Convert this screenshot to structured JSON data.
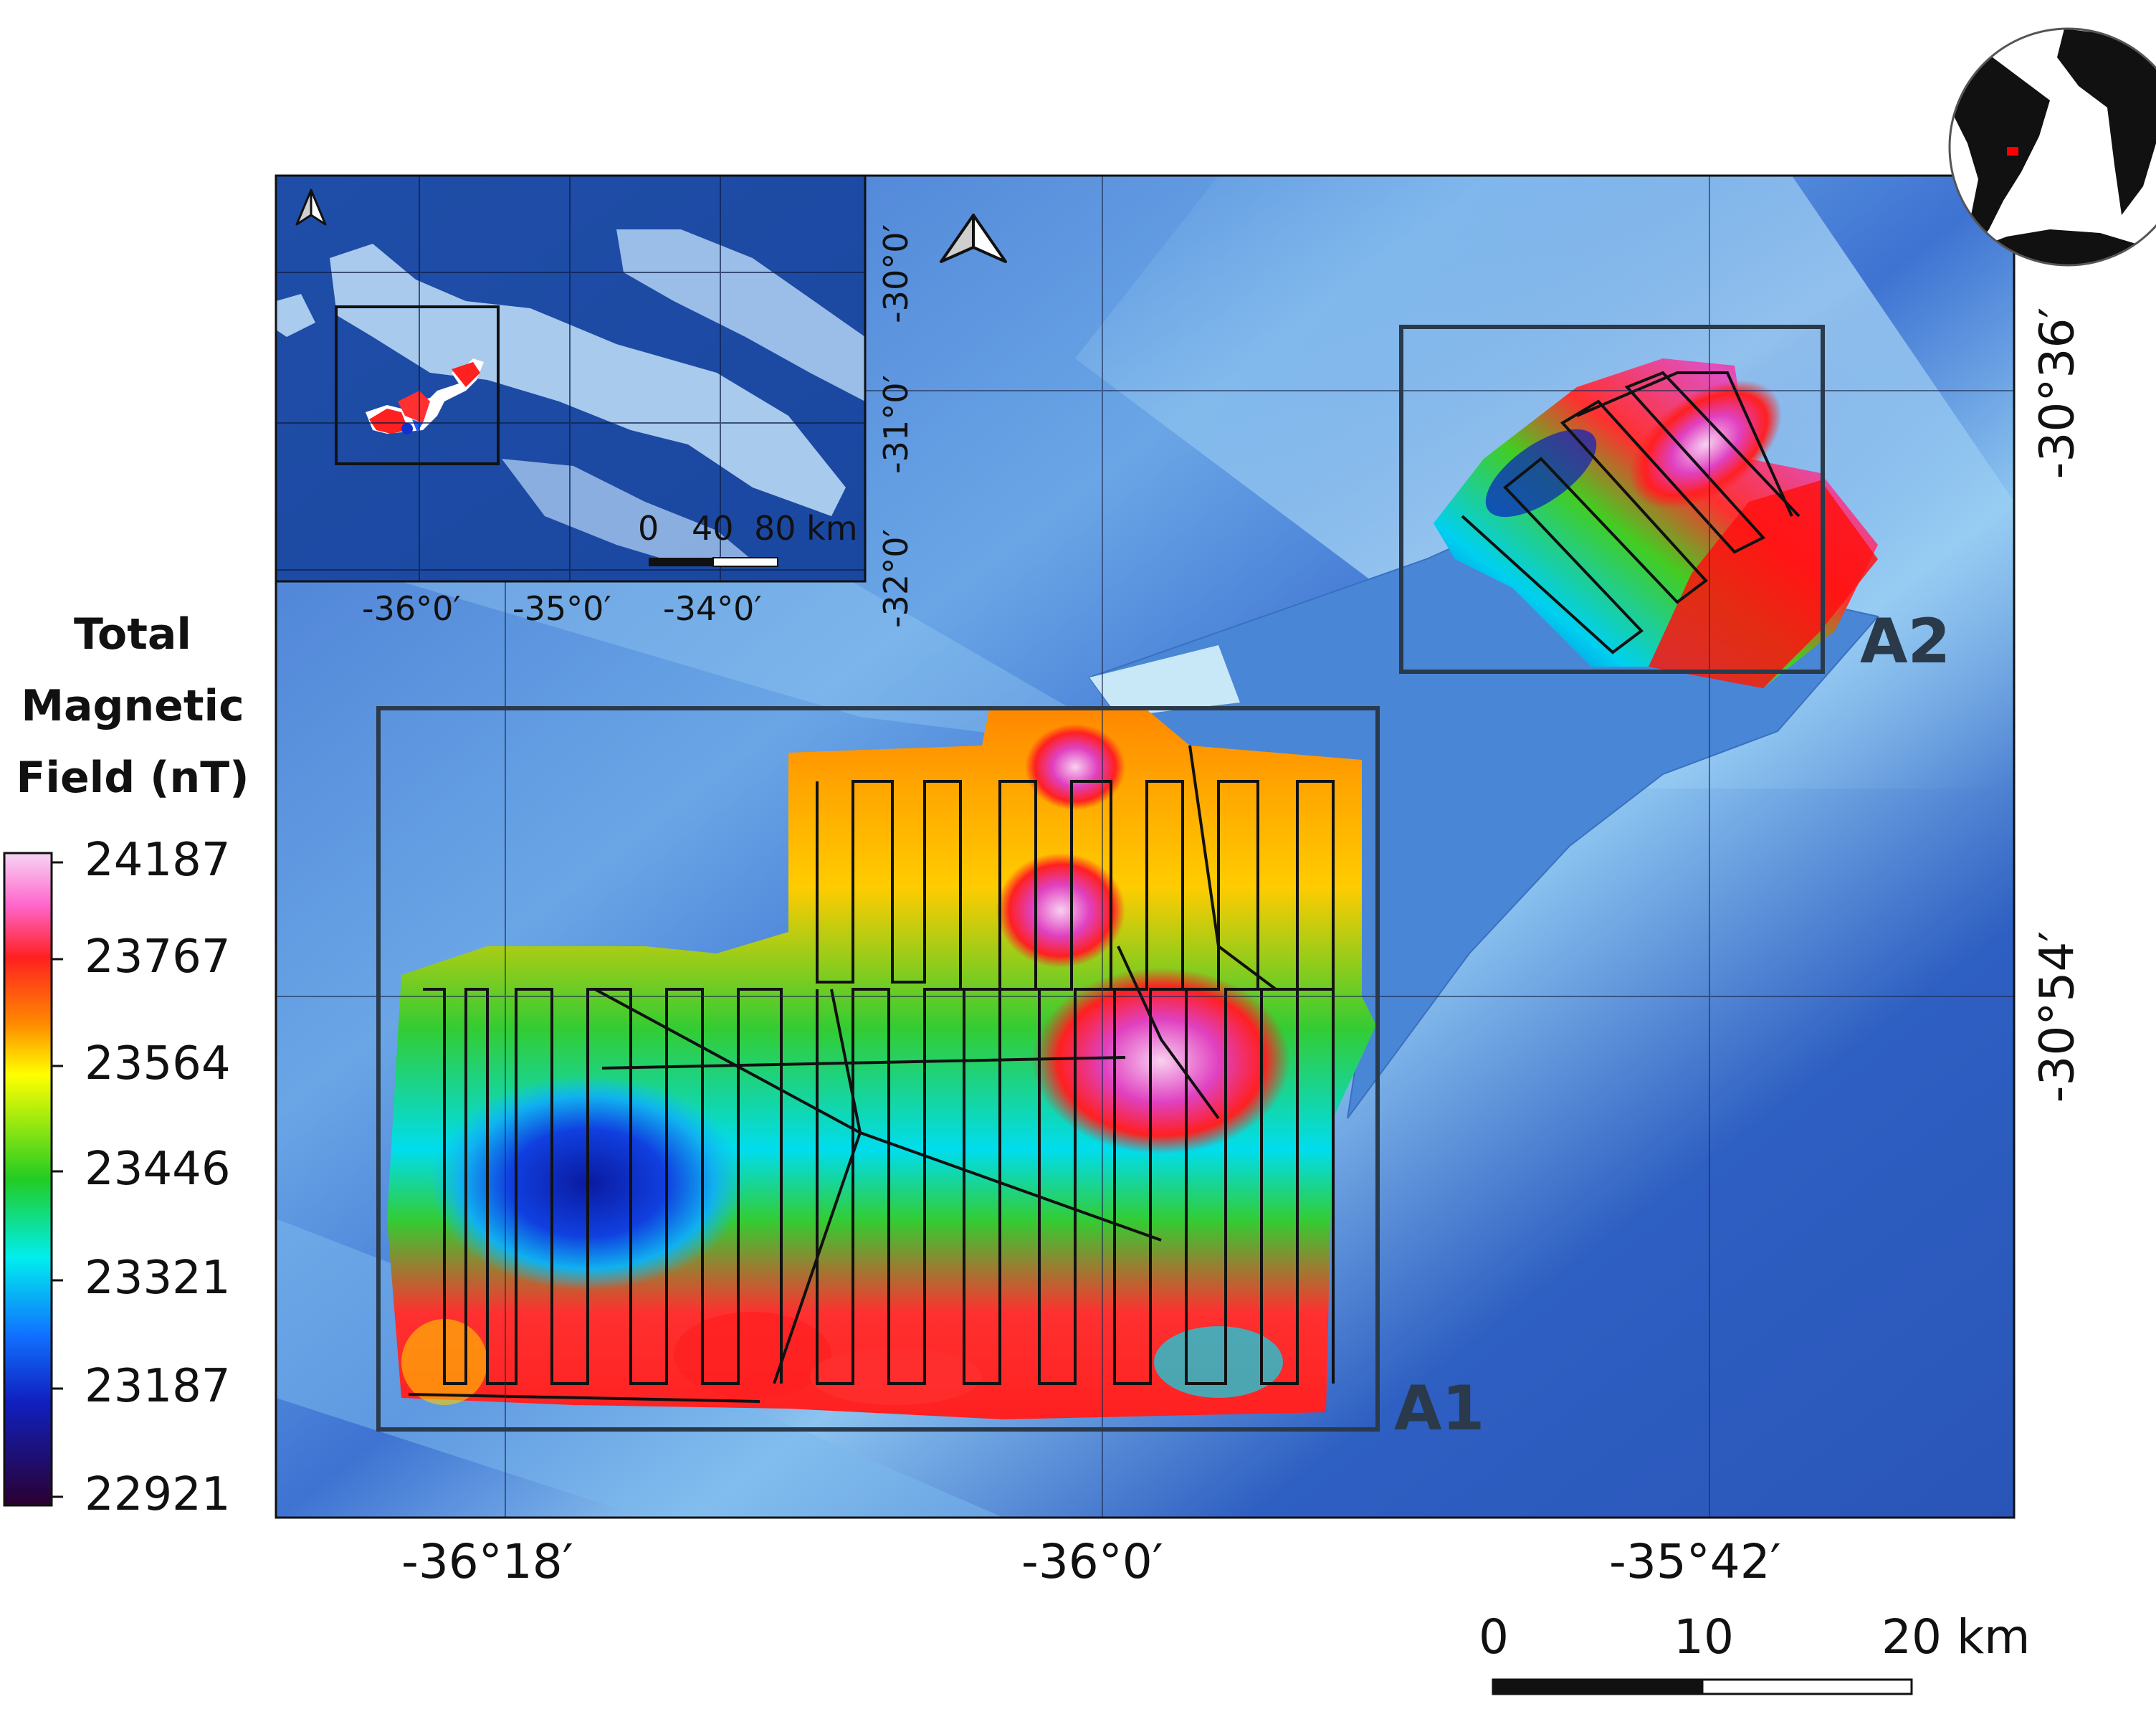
{
  "legend": {
    "title_lines": [
      "Total",
      "Magnetic",
      "Field (nT)"
    ],
    "values": [
      "24187",
      "23767",
      "23564",
      "23446",
      "23321",
      "23187",
      "22921"
    ],
    "colors": [
      "#f4c4f0",
      "#ff3030",
      "#ffff00",
      "#33cc33",
      "#00eeee",
      "#1040e0",
      "#300040"
    ]
  },
  "main_map": {
    "lon_labels": [
      "-36°18′",
      "-36°0′",
      "-35°42′"
    ],
    "lat_labels": [
      "-30°36′",
      "-30°54′"
    ],
    "boxes": [
      {
        "label": "A1"
      },
      {
        "label": "A2"
      }
    ],
    "scalebar": {
      "labels": [
        "0",
        "10",
        "20 km"
      ]
    },
    "north_arrow": "north-arrow-icon"
  },
  "inset_map": {
    "lon_labels": [
      "-36°0′",
      "-35°0′",
      "-34°0′"
    ],
    "lat_labels": [
      "-30°0′",
      "-31°0′",
      "-32°0′"
    ],
    "scalebar": {
      "labels": [
        "0",
        "40",
        "80 km"
      ]
    }
  },
  "globe": {
    "marker_color": "#ff0000"
  }
}
